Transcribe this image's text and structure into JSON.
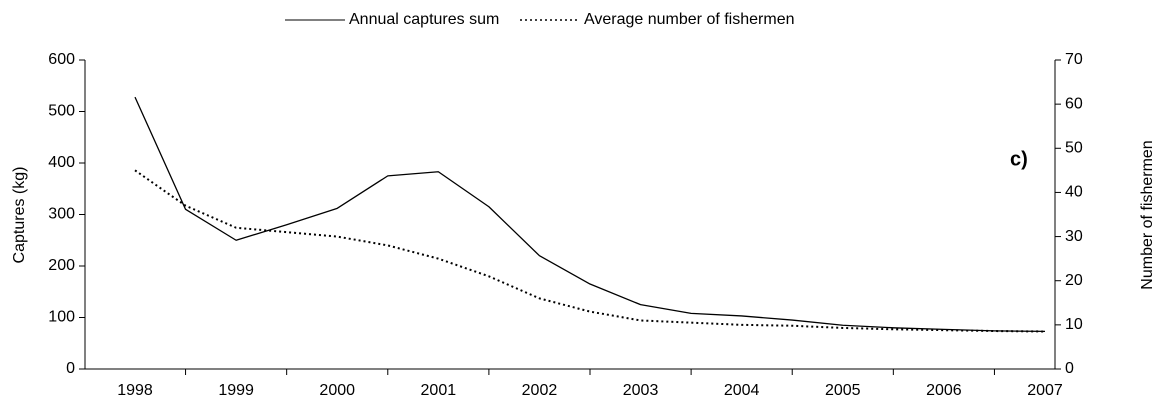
{
  "chart_data": {
    "type": "line",
    "annotation": "c)",
    "ylabel": "Captures (kg)",
    "y2label": "Number of fishermen",
    "categories": [
      "1998",
      null,
      "1999",
      null,
      "2000",
      null,
      "2001",
      null,
      "2002",
      null,
      "2003",
      null,
      "2004",
      null,
      "2005",
      null,
      "2006",
      null,
      "2007"
    ],
    "series": [
      {
        "name": "Annual captures sum",
        "color": "#000000",
        "style": "solid",
        "values": [
          528,
          310,
          250,
          280,
          312,
          375,
          383,
          315,
          220,
          165,
          125,
          108,
          103,
          95,
          85,
          80,
          77,
          74,
          73
        ]
      },
      {
        "name": "Average number of fishermen",
        "color": "#000000",
        "style": "dotted",
        "axis": "y2",
        "values": [
          45,
          37,
          32,
          31,
          30,
          28,
          25,
          21,
          16,
          13,
          11,
          10.5,
          10,
          9.8,
          9.3,
          9,
          8.8,
          8.6,
          8.5
        ]
      }
    ],
    "ylim": [
      0,
      600
    ],
    "yticks": [
      0,
      100,
      200,
      300,
      400,
      500,
      600
    ],
    "y2lim": [
      0,
      70
    ],
    "y2ticks": [
      0,
      10,
      20,
      30,
      40,
      50,
      60,
      70
    ],
    "grid": false
  }
}
